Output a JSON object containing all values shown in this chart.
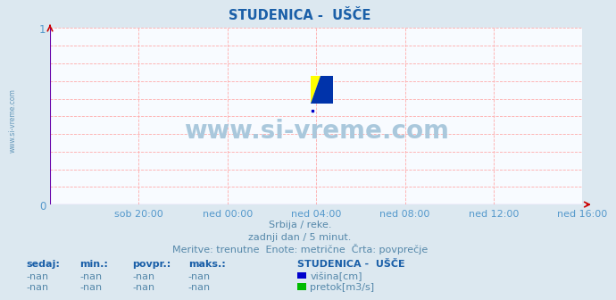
{
  "title": "STUDENICA -  UŠČE",
  "title_color": "#1a5fa8",
  "background_color": "#dce8f0",
  "plot_bg_color": "#f8fbff",
  "grid_color": "#ffaaaa",
  "tick_color": "#5599cc",
  "xlim": [
    0,
    288
  ],
  "ylim": [
    0,
    1
  ],
  "yticks": [
    0,
    1
  ],
  "xtick_labels": [
    "sob 20:00",
    "ned 00:00",
    "ned 04:00",
    "ned 08:00",
    "ned 12:00",
    "ned 16:00"
  ],
  "xtick_positions": [
    48,
    96,
    144,
    192,
    240,
    288
  ],
  "watermark_text": "www.si-vreme.com",
  "watermark_color": "#aac8dc",
  "sidebar_text": "www.si-vreme.com",
  "sidebar_color": "#6699bb",
  "sub_text1": "Srbija / reke.",
  "sub_text2": "zadnji dan / 5 minut.",
  "sub_text3": "Meritve: trenutne  Enote: metrične  Črta: povprečje",
  "sub_text_color": "#5588aa",
  "legend_title": "STUDENICA -  UŠČE",
  "legend_color1": "#0000cc",
  "legend_color2": "#00bb00",
  "legend_label1": "višina[cm]",
  "legend_label2": "pretok[m3/s]",
  "table_headers": [
    "sedaj:",
    "min.:",
    "povpr.:",
    "maks.:"
  ],
  "table_header_color": "#1a5fa8",
  "table_values": [
    "-nan",
    "-nan",
    "-nan",
    "-nan"
  ],
  "table_value_color": "#5588aa",
  "logo_yellow": "#ffff00",
  "logo_cyan": "#00ccff",
  "logo_blue": "#0033aa",
  "axis_arrow_color": "#cc0000",
  "axis_line_color": "#6600aa"
}
